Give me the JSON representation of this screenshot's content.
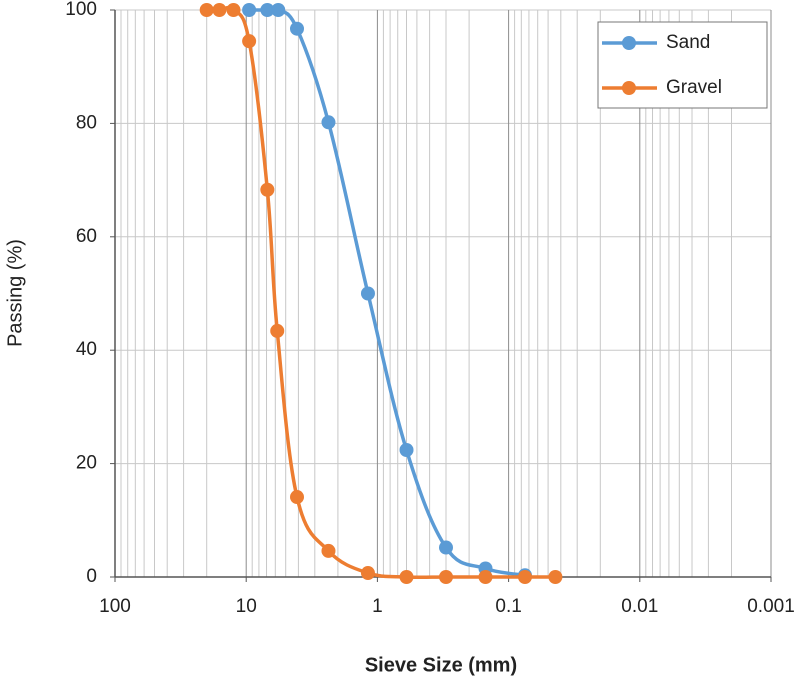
{
  "chart_data": {
    "type": "line",
    "x_label": "Sieve Size (mm)",
    "y_label": "Passing (%)",
    "xscale": "log",
    "xlim": [
      100,
      0.001
    ],
    "xticks": [
      100,
      10,
      1,
      0.1,
      0.01,
      0.001
    ],
    "ylim": [
      0,
      100
    ],
    "yticks": [
      0,
      20,
      40,
      60,
      80,
      100
    ],
    "grid": true,
    "minor_grid": true,
    "legend": "upper right",
    "smooth": true,
    "series": [
      {
        "name": "Sand",
        "color": "#5b9bd5",
        "x": [
          9.5,
          6.9,
          5.7,
          4.1,
          2.36,
          1.18,
          0.6,
          0.3,
          0.15,
          0.075
        ],
        "values": [
          100,
          100,
          100,
          96.7,
          80.2,
          50,
          22.4,
          5.2,
          1.5,
          0.3
        ]
      },
      {
        "name": "Gravel",
        "color": "#ed7d31",
        "x": [
          20,
          16,
          12.5,
          9.5,
          6.9,
          5.8,
          4.1,
          2.36,
          1.18,
          0.6,
          0.3,
          0.15,
          0.075,
          0.044
        ],
        "values": [
          100,
          100,
          100,
          94.5,
          68.3,
          43.4,
          14.1,
          4.6,
          0.7,
          0,
          0,
          0,
          0,
          0
        ]
      }
    ]
  }
}
